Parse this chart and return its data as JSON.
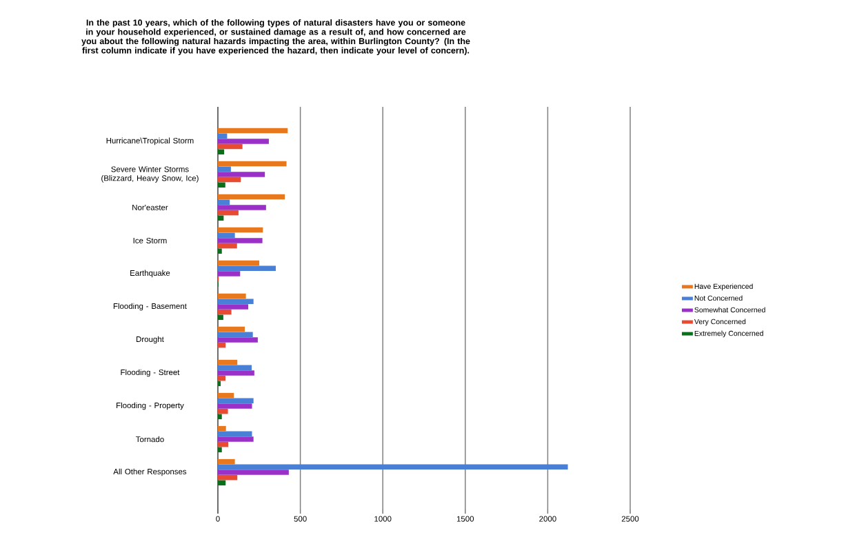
{
  "chart_data": {
    "type": "bar",
    "orientation": "horizontal",
    "title": "In the past 10 years, which of the following types of natural disasters have you or someone in your household experienced, or sustained damage as a result of, and how concerned are you about the following natural hazards impacting the area, within Burlington County? (In the first column indicate if you have experienced the hazard, then indicate your level of concern).",
    "categories": [
      "Hurricane\\Tropical Storm",
      "Severe Winter Storms (Blizzard, Heavy Snow, Ice)",
      "Nor'easter",
      "Ice Storm",
      "Earthquake",
      "Flooding - Basement",
      "Drought",
      "Flooding - Street",
      "Flooding - Property",
      "Tornado",
      "All Other Responses"
    ],
    "series": [
      {
        "name": "Have Experienced",
        "color": "#e8781e",
        "values": [
          423,
          416,
          406,
          273,
          251,
          170,
          163,
          118,
          97,
          49,
          103
        ]
      },
      {
        "name": "Not Concerned",
        "color": "#4a7fd6",
        "values": [
          56,
          79,
          72,
          103,
          351,
          216,
          212,
          205,
          216,
          207,
          2122
        ]
      },
      {
        "name": "Somewhat Concerned",
        "color": "#9b30c8",
        "values": [
          309,
          285,
          292,
          270,
          135,
          184,
          242,
          221,
          207,
          216,
          430
        ]
      },
      {
        "name": "Very Concerned",
        "color": "#e84a32",
        "values": [
          149,
          139,
          125,
          116,
          5,
          82,
          47,
          46,
          61,
          63,
          118
        ]
      },
      {
        "name": "Extremely Concerned",
        "color": "#0a6e1a",
        "values": [
          38,
          45,
          35,
          24,
          3,
          33,
          0,
          17,
          24,
          24,
          47
        ]
      }
    ],
    "xlim": [
      0,
      2500
    ],
    "xticks": [
      0,
      500,
      1000,
      1500,
      2000,
      2500
    ],
    "grid": "x",
    "legend": "right"
  }
}
